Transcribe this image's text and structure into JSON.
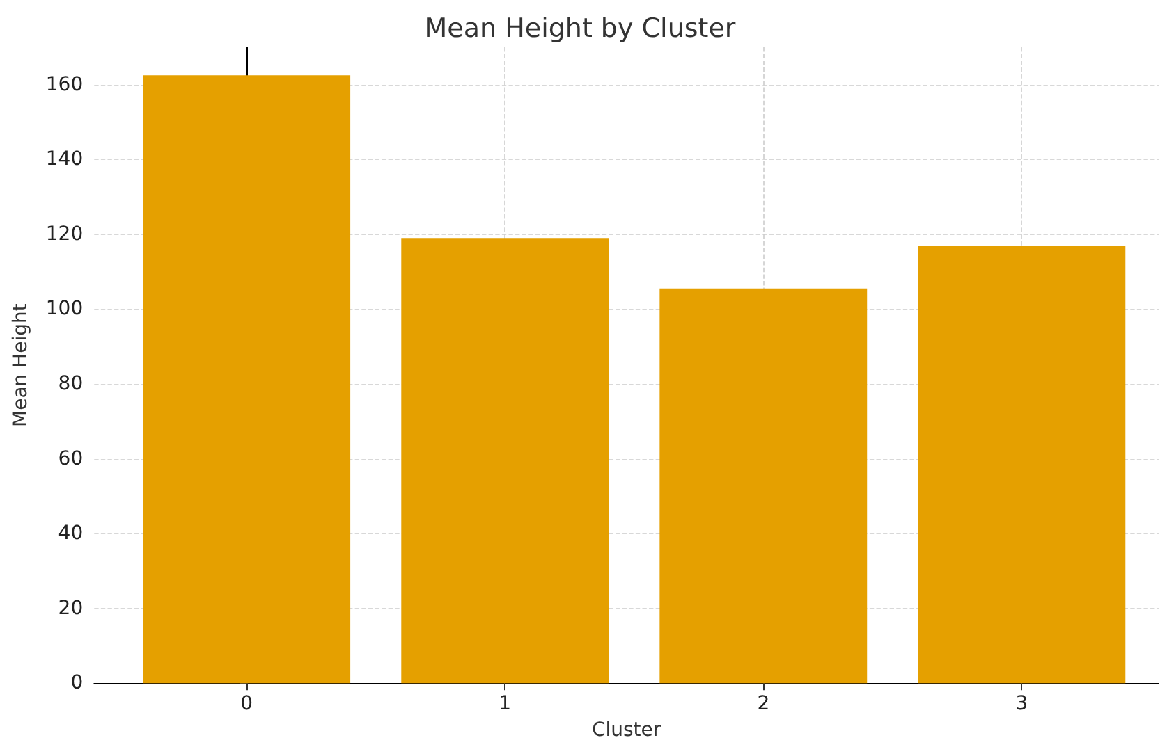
{
  "chart_data": {
    "type": "bar",
    "title": "Mean Height by Cluster",
    "xlabel": "Cluster",
    "ylabel": "Mean Height",
    "x": [
      0,
      1,
      2,
      3
    ],
    "values": [
      162.5,
      119,
      105.5,
      117
    ],
    "color": "#e5a000",
    "xlim": [
      -0.59,
      3.53
    ],
    "xticks": [
      0,
      1,
      2,
      3
    ],
    "ylim": [
      0,
      170
    ],
    "yticks": [
      0,
      20,
      40,
      60,
      80,
      100,
      120,
      140,
      160
    ],
    "grid": true
  }
}
